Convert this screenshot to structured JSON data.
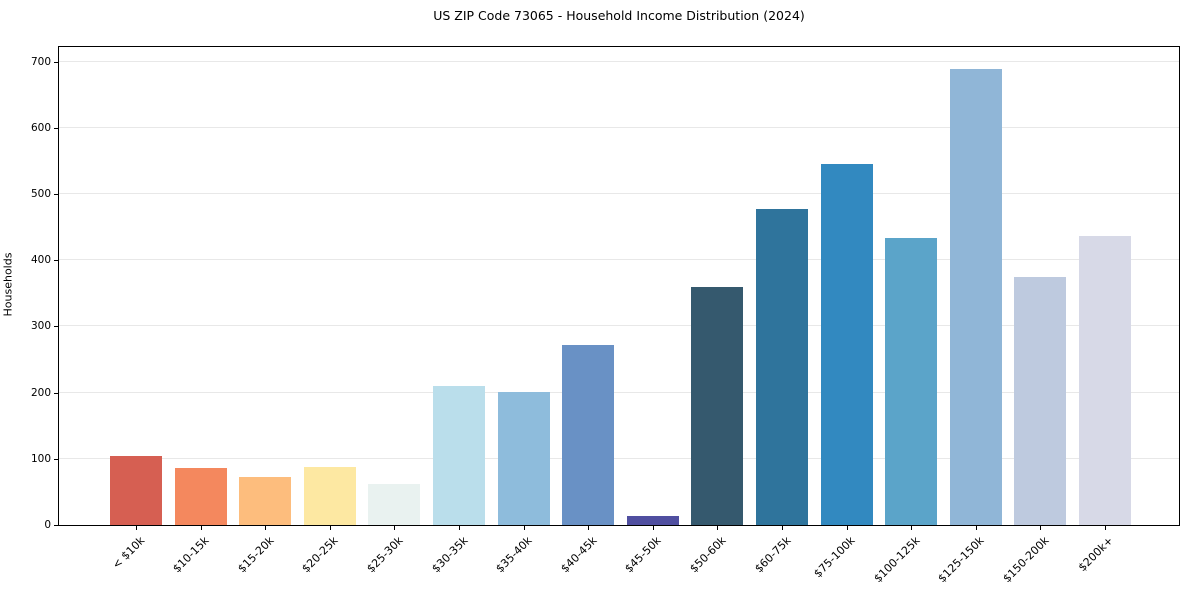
{
  "chart_data": {
    "type": "bar",
    "title": "US ZIP Code 73065 - Household Income Distribution (2024)",
    "xlabel": "",
    "ylabel": "Households",
    "categories": [
      "< $10k",
      "$10-15k",
      "$15-20k",
      "$20-25k",
      "$25-30k",
      "$30-35k",
      "$35-40k",
      "$40-45k",
      "$45-50k",
      "$50-60k",
      "$60-75k",
      "$75-100k",
      "$100-125k",
      "$125-150k",
      "$150-200k",
      "$200k+"
    ],
    "values": [
      105,
      86,
      72,
      88,
      62,
      210,
      201,
      272,
      13,
      360,
      477,
      546,
      434,
      689,
      374,
      436
    ],
    "bar_colors": [
      "#d65f52",
      "#f4885e",
      "#fdbd7d",
      "#fde8a2",
      "#e9f2f0",
      "#badeeb",
      "#8ebcdc",
      "#6991c5",
      "#504fa0",
      "#35596e",
      "#2f749c",
      "#3289c0",
      "#5ba4c9",
      "#90b6d7",
      "#becadf",
      "#d7d9e7"
    ],
    "yticks": [
      0,
      100,
      200,
      300,
      400,
      500,
      600,
      700
    ],
    "ylim": [
      0,
      722
    ],
    "grid": "horizontal",
    "gridline_color": "#e8e8e8",
    "axis_color": "#000000",
    "legend": "none"
  }
}
